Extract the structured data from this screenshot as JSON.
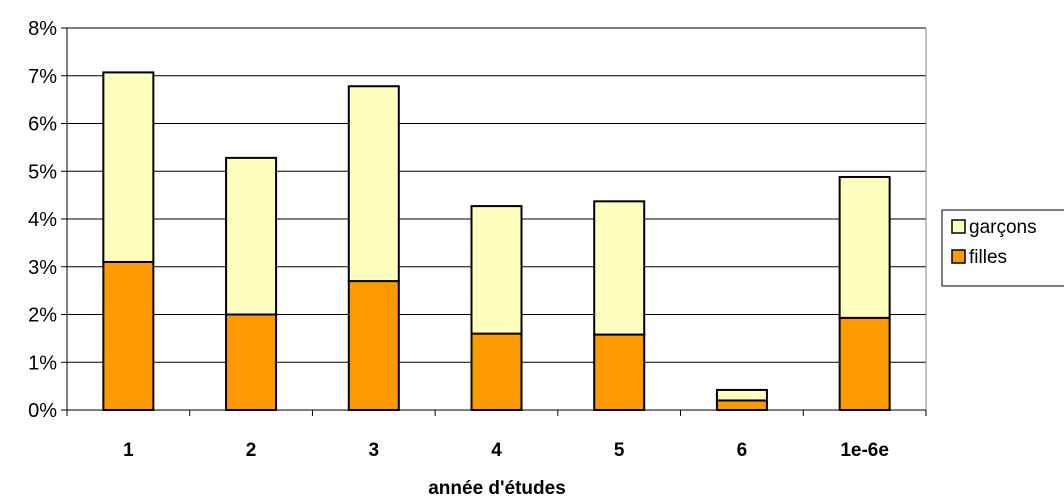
{
  "chart_data": {
    "type": "bar",
    "stacked": true,
    "categories": [
      "1",
      "2",
      "3",
      "4",
      "5",
      "6",
      "1e-6e"
    ],
    "series": [
      {
        "name": "filles",
        "color": "#ff9900",
        "values": [
          3.1,
          2.0,
          2.7,
          1.6,
          1.58,
          0.2,
          1.93
        ]
      },
      {
        "name": "garçons",
        "color": "#ffffc0",
        "values": [
          3.97,
          3.28,
          4.08,
          2.67,
          2.79,
          0.22,
          2.95
        ]
      }
    ],
    "title": "",
    "xlabel": "année d'études",
    "ylabel": "",
    "ylim": [
      0,
      8
    ],
    "yticks": [
      "0%",
      "1%",
      "2%",
      "3%",
      "4%",
      "5%",
      "6%",
      "7%",
      "8%"
    ],
    "grid": true,
    "legend_position": "right",
    "legend": [
      {
        "label": "garçons",
        "color": "#ffffc0"
      },
      {
        "label": "filles",
        "color": "#ff9900"
      }
    ]
  }
}
